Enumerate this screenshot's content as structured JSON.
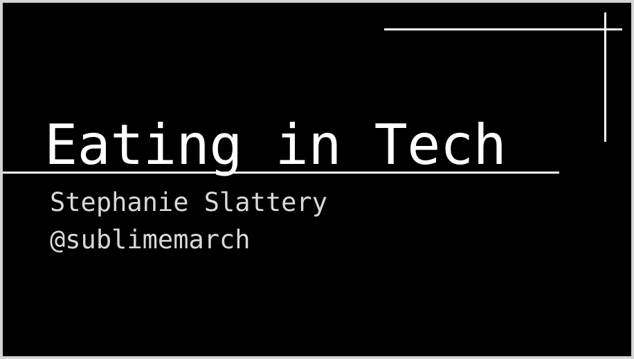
{
  "slide": {
    "title": "Eating in Tech",
    "subtitle": {
      "author": "Stephanie Slattery",
      "handle": "@sublimemarch"
    }
  },
  "colors": {
    "background": "#000000",
    "title_text": "#ffffff",
    "subtitle_text": "#d9d9d9",
    "lines": "#ffffff",
    "frame": "#d4d4d4"
  }
}
